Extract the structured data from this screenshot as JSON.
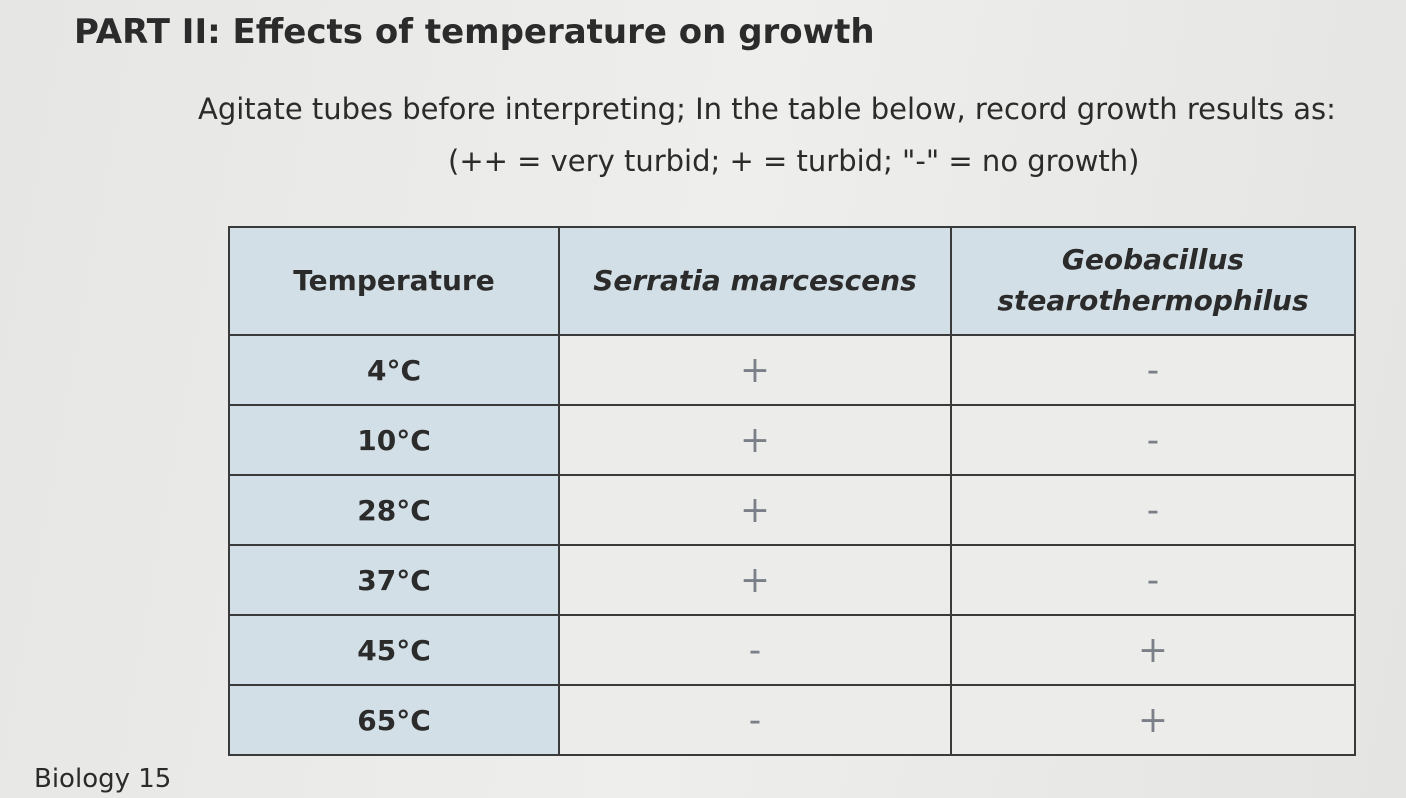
{
  "title": "PART II: Effects of temperature on growth",
  "instructions": [
    "Agitate tubes before interpreting; In the table below, record growth results as:",
    "(++ = very turbid; + = turbid; \"-\" = no growth)"
  ],
  "table": {
    "header": [
      "Temperature",
      "Serratia marcescens",
      "Geobacillus stearothermophilus"
    ],
    "rows": [
      [
        "4°C",
        "+",
        "-"
      ],
      [
        "10°C",
        "+",
        "-"
      ],
      [
        "28°C",
        "+",
        "-"
      ],
      [
        "37°C",
        "+",
        "-"
      ],
      [
        "45°C",
        "-",
        "+"
      ],
      [
        "65°C",
        "-",
        "+"
      ]
    ]
  },
  "footer": "Biology 15"
}
